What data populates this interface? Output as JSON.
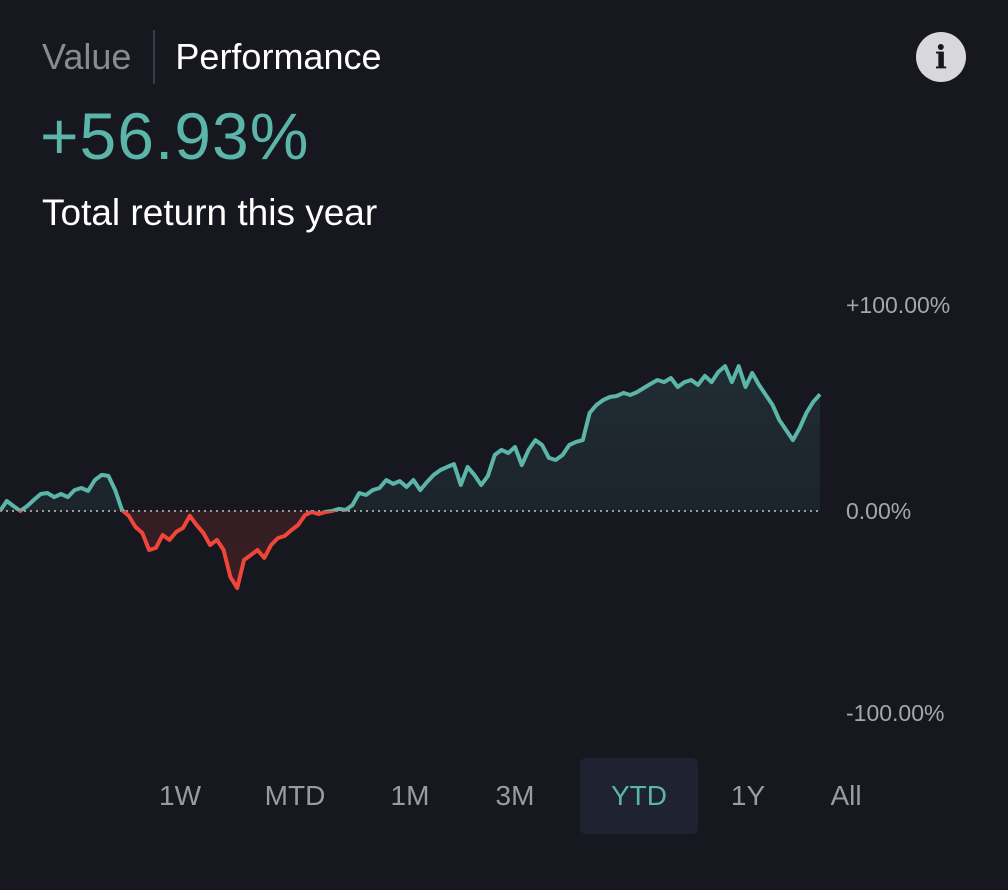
{
  "header": {
    "tab_value": "Value",
    "tab_performance": "Performance",
    "active_tab": "Performance",
    "info_icon": "i"
  },
  "summary": {
    "return_value": "+56.93%",
    "return_label": "Total return this year"
  },
  "colors": {
    "background": "#16171f",
    "positive": "#5bb5a8",
    "negative": "#f0463a",
    "axis_text": "#a6a7ad"
  },
  "range_selector": {
    "options": [
      "1W",
      "MTD",
      "1M",
      "3M",
      "YTD",
      "1Y",
      "All"
    ],
    "selected": "YTD"
  },
  "chart_data": {
    "type": "line",
    "ylim": [
      -100,
      100
    ],
    "y_ticks": [
      "+100.00%",
      "0.00%",
      "-100.00%"
    ],
    "y_tick_values": [
      100,
      0,
      -100
    ],
    "baseline": 0,
    "grid": "dotted baseline at 0",
    "values": [
      0,
      4.9,
      2.4,
      0,
      2.4,
      5.4,
      8.3,
      8.8,
      6.8,
      8.3,
      6.8,
      10.2,
      11.2,
      9.8,
      15.1,
      17.6,
      17.1,
      10.2,
      0.5,
      -2.4,
      -7.8,
      -10.7,
      -19.0,
      -18.0,
      -11.7,
      -14.1,
      -10.2,
      -8.3,
      -2.4,
      -6.8,
      -10.7,
      -16.6,
      -14.1,
      -19.0,
      -32.2,
      -37.6,
      -23.9,
      -21.5,
      -19.0,
      -22.9,
      -16.6,
      -13.2,
      -12.2,
      -9.3,
      -6.8,
      -2.0,
      -0.5,
      -1.5,
      -0.5,
      0,
      1.0,
      0.5,
      2.9,
      8.8,
      7.8,
      10.2,
      11.2,
      15.1,
      13.2,
      14.6,
      11.7,
      15.1,
      10.2,
      14.1,
      17.6,
      20.0,
      21.5,
      22.9,
      12.7,
      21.5,
      17.6,
      12.7,
      17.1,
      27.3,
      29.8,
      28.3,
      31.2,
      22.4,
      29.8,
      34.6,
      32.2,
      25.9,
      24.9,
      27.3,
      32.2,
      33.7,
      34.6,
      47.8,
      51.7,
      54.1,
      55.6,
      56.1,
      57.6,
      56.6,
      58.0,
      60.0,
      62.0,
      63.9,
      62.9,
      64.9,
      60.5,
      62.9,
      63.9,
      61.5,
      65.9,
      62.9,
      67.8,
      70.7,
      62.9,
      70.7,
      60.5,
      67.3,
      61.5,
      56.6,
      51.7,
      44.4,
      39.5,
      34.6,
      40.5,
      47.8,
      53.2,
      56.93
    ]
  }
}
